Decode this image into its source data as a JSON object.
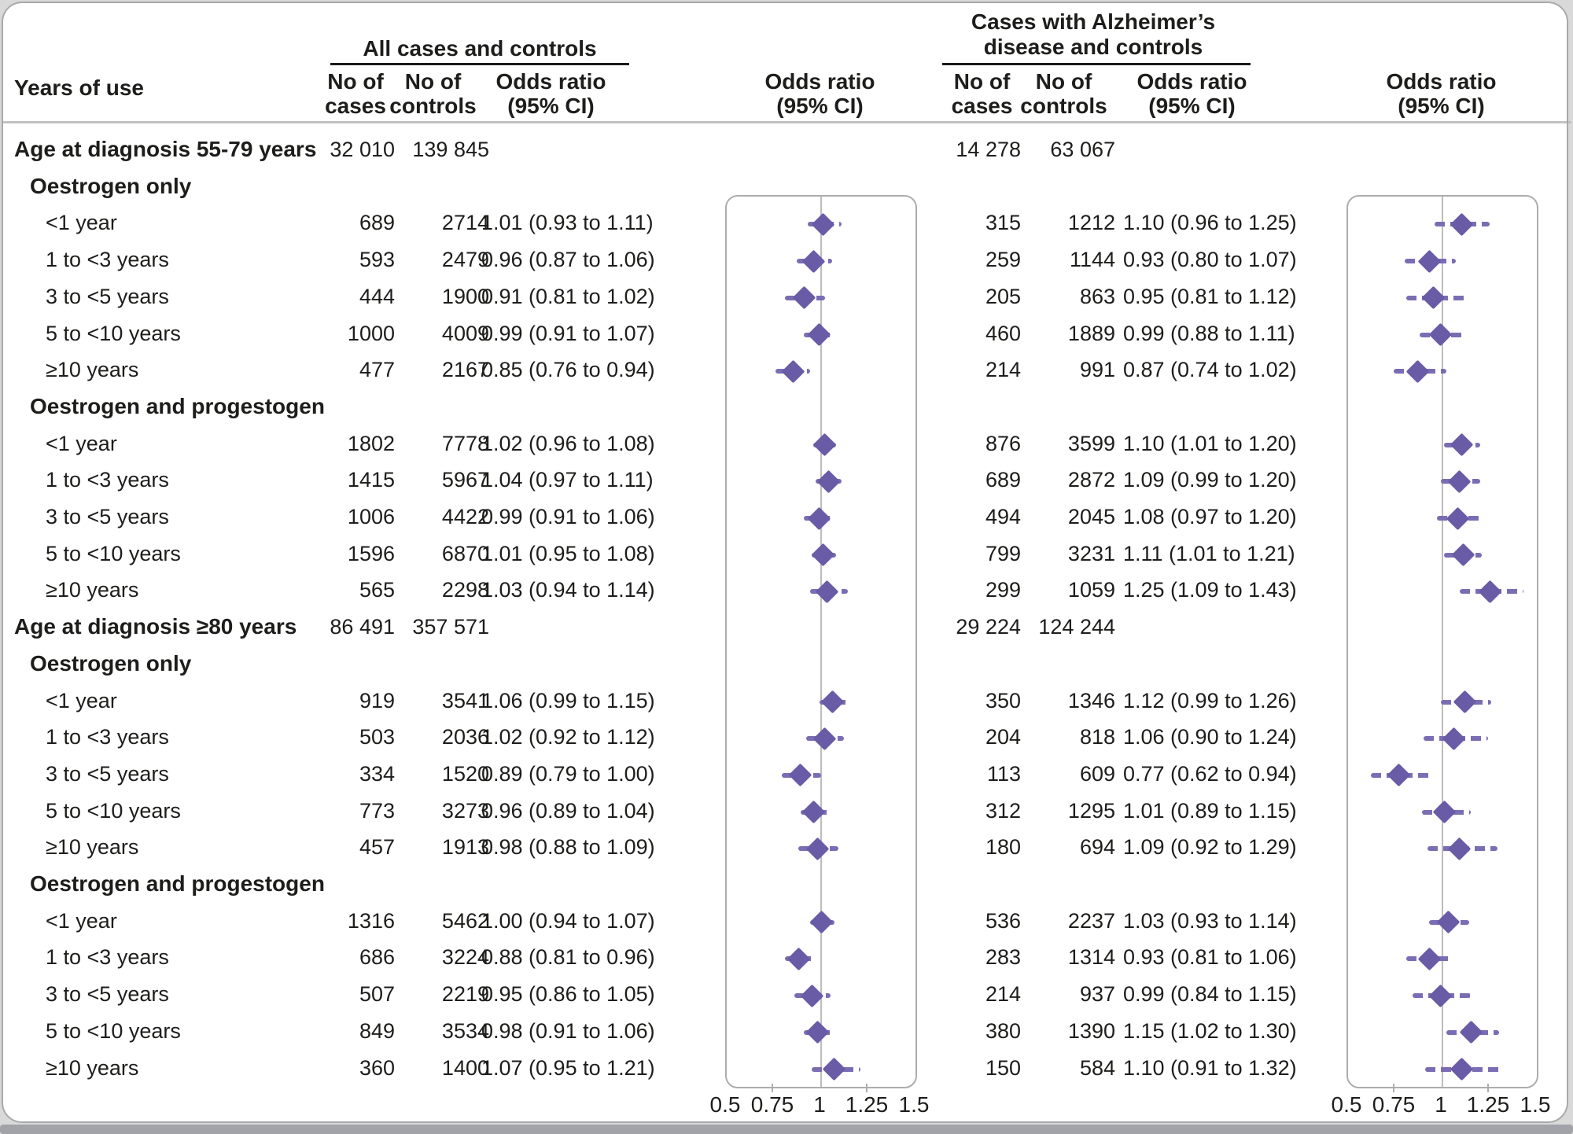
{
  "colors": {
    "diamond": "#6a5ba6",
    "ci_line": "#7b6db4",
    "plot_border": "#adadad",
    "refline": "#bcbcbc",
    "text": "#1d1d1b",
    "underline": "#1a1a1a",
    "separator": "#c2c2c2",
    "bottom_bar": "#a1a3a8",
    "panel_border": "#a8a8a8",
    "page_bg": "#d9d9d9"
  },
  "header": {
    "years_of_use": "Years of use",
    "all_cases_label": "All cases and controls",
    "alz_label_line1": "Cases with Alzheimer’s",
    "alz_label_line2": "disease and controls",
    "no_of": "No of",
    "cases": "cases",
    "controls": "controls",
    "odds_ratio": "Odds ratio",
    "ci": "(95% CI)"
  },
  "chart_data": {
    "type": "forest",
    "panels": [
      {
        "name": "All cases and controls"
      },
      {
        "name": "Cases with Alzheimer's disease and controls"
      }
    ],
    "x_axis": {
      "range": [
        0.5,
        1.5
      ],
      "ticks": [
        0.5,
        0.75,
        1,
        1.25,
        1.5
      ],
      "tick_labels": [
        "0.5",
        "0.75",
        "1",
        "1.25",
        "1.5"
      ],
      "refline": 1
    },
    "sections": [
      {
        "label": "Age at diagnosis 55-79 years",
        "totals": {
          "all": {
            "cases": "32 010",
            "controls": "139 845"
          },
          "alz": {
            "cases": "14 278",
            "controls": "63 067"
          }
        },
        "groups": [
          {
            "label": "Oestrogen only",
            "rows": [
              {
                "label": "<1 year",
                "all": {
                  "cases": "689",
                  "controls": "2714",
                  "text": "1.01 (0.93 to 1.11)",
                  "or": 1.01,
                  "lo": 0.93,
                  "hi": 1.11
                },
                "alz": {
                  "cases": "315",
                  "controls": "1212",
                  "text": "1.10 (0.96 to 1.25)",
                  "or": 1.1,
                  "lo": 0.96,
                  "hi": 1.25
                }
              },
              {
                "label": "1 to <3 years",
                "all": {
                  "cases": "593",
                  "controls": "2479",
                  "text": "0.96 (0.87 to 1.06)",
                  "or": 0.96,
                  "lo": 0.87,
                  "hi": 1.06
                },
                "alz": {
                  "cases": "259",
                  "controls": "1144",
                  "text": "0.93 (0.80 to 1.07)",
                  "or": 0.93,
                  "lo": 0.8,
                  "hi": 1.07
                }
              },
              {
                "label": "3 to <5 years",
                "all": {
                  "cases": "444",
                  "controls": "1900",
                  "text": "0.91 (0.81 to 1.02)",
                  "or": 0.91,
                  "lo": 0.81,
                  "hi": 1.02
                },
                "alz": {
                  "cases": "205",
                  "controls": "863",
                  "text": "0.95 (0.81 to 1.12)",
                  "or": 0.95,
                  "lo": 0.81,
                  "hi": 1.12
                }
              },
              {
                "label": "5 to <10 years",
                "all": {
                  "cases": "1000",
                  "controls": "4009",
                  "text": "0.99 (0.91 to 1.07)",
                  "or": 0.99,
                  "lo": 0.91,
                  "hi": 1.07
                },
                "alz": {
                  "cases": "460",
                  "controls": "1889",
                  "text": "0.99 (0.88 to 1.11)",
                  "or": 0.99,
                  "lo": 0.88,
                  "hi": 1.11
                }
              },
              {
                "label": "≥10 years",
                "all": {
                  "cases": "477",
                  "controls": "2167",
                  "text": "0.85 (0.76 to 0.94)",
                  "or": 0.85,
                  "lo": 0.76,
                  "hi": 0.94
                },
                "alz": {
                  "cases": "214",
                  "controls": "991",
                  "text": "0.87 (0.74 to 1.02)",
                  "or": 0.87,
                  "lo": 0.74,
                  "hi": 1.02
                }
              }
            ]
          },
          {
            "label": "Oestrogen and progestogen",
            "rows": [
              {
                "label": "<1 year",
                "all": {
                  "cases": "1802",
                  "controls": "7778",
                  "text": "1.02 (0.96 to 1.08)",
                  "or": 1.02,
                  "lo": 0.96,
                  "hi": 1.08
                },
                "alz": {
                  "cases": "876",
                  "controls": "3599",
                  "text": "1.10 (1.01 to 1.20)",
                  "or": 1.1,
                  "lo": 1.01,
                  "hi": 1.2
                }
              },
              {
                "label": "1 to <3 years",
                "all": {
                  "cases": "1415",
                  "controls": "5967",
                  "text": "1.04 (0.97 to 1.11)",
                  "or": 1.04,
                  "lo": 0.97,
                  "hi": 1.11
                },
                "alz": {
                  "cases": "689",
                  "controls": "2872",
                  "text": "1.09 (0.99 to 1.20)",
                  "or": 1.09,
                  "lo": 0.99,
                  "hi": 1.2
                }
              },
              {
                "label": "3 to <5 years",
                "all": {
                  "cases": "1006",
                  "controls": "4422",
                  "text": "0.99 (0.91 to 1.06)",
                  "or": 0.99,
                  "lo": 0.91,
                  "hi": 1.06
                },
                "alz": {
                  "cases": "494",
                  "controls": "2045",
                  "text": "1.08 (0.97 to 1.20)",
                  "or": 1.08,
                  "lo": 0.97,
                  "hi": 1.2
                }
              },
              {
                "label": "5 to <10 years",
                "all": {
                  "cases": "1596",
                  "controls": "6870",
                  "text": "1.01 (0.95 to 1.08)",
                  "or": 1.01,
                  "lo": 0.95,
                  "hi": 1.08
                },
                "alz": {
                  "cases": "799",
                  "controls": "3231",
                  "text": "1.11 (1.01 to 1.21)",
                  "or": 1.11,
                  "lo": 1.01,
                  "hi": 1.21
                }
              },
              {
                "label": "≥10 years",
                "all": {
                  "cases": "565",
                  "controls": "2298",
                  "text": "1.03 (0.94 to 1.14)",
                  "or": 1.03,
                  "lo": 0.94,
                  "hi": 1.14
                },
                "alz": {
                  "cases": "299",
                  "controls": "1059",
                  "text": "1.25 (1.09 to 1.43)",
                  "or": 1.25,
                  "lo": 1.09,
                  "hi": 1.43
                }
              }
            ]
          }
        ]
      },
      {
        "label": "Age at diagnosis ≥80 years",
        "totals": {
          "all": {
            "cases": "86 491",
            "controls": "357 571"
          },
          "alz": {
            "cases": "29 224",
            "controls": "124 244"
          }
        },
        "groups": [
          {
            "label": "Oestrogen only",
            "rows": [
              {
                "label": "<1 year",
                "all": {
                  "cases": "919",
                  "controls": "3541",
                  "text": "1.06 (0.99 to 1.15)",
                  "or": 1.06,
                  "lo": 0.99,
                  "hi": 1.15
                },
                "alz": {
                  "cases": "350",
                  "controls": "1346",
                  "text": "1.12 (0.99 to 1.26)",
                  "or": 1.12,
                  "lo": 0.99,
                  "hi": 1.26
                }
              },
              {
                "label": "1 to <3 years",
                "all": {
                  "cases": "503",
                  "controls": "2036",
                  "text": "1.02 (0.92 to 1.12)",
                  "or": 1.02,
                  "lo": 0.92,
                  "hi": 1.12
                },
                "alz": {
                  "cases": "204",
                  "controls": "818",
                  "text": "1.06 (0.90 to 1.24)",
                  "or": 1.06,
                  "lo": 0.9,
                  "hi": 1.24
                }
              },
              {
                "label": "3 to <5 years",
                "all": {
                  "cases": "334",
                  "controls": "1520",
                  "text": "0.89 (0.79 to 1.00)",
                  "or": 0.89,
                  "lo": 0.79,
                  "hi": 1.0
                },
                "alz": {
                  "cases": "113",
                  "controls": "609",
                  "text": "0.77 (0.62 to 0.94)",
                  "or": 0.77,
                  "lo": 0.62,
                  "hi": 0.94
                }
              },
              {
                "label": "5 to <10 years",
                "all": {
                  "cases": "773",
                  "controls": "3273",
                  "text": "0.96 (0.89 to 1.04)",
                  "or": 0.96,
                  "lo": 0.89,
                  "hi": 1.04
                },
                "alz": {
                  "cases": "312",
                  "controls": "1295",
                  "text": "1.01 (0.89 to 1.15)",
                  "or": 1.01,
                  "lo": 0.89,
                  "hi": 1.15
                }
              },
              {
                "label": "≥10 years",
                "all": {
                  "cases": "457",
                  "controls": "1913",
                  "text": "0.98 (0.88 to 1.09)",
                  "or": 0.98,
                  "lo": 0.88,
                  "hi": 1.09
                },
                "alz": {
                  "cases": "180",
                  "controls": "694",
                  "text": "1.09 (0.92 to 1.29)",
                  "or": 1.09,
                  "lo": 0.92,
                  "hi": 1.29
                }
              }
            ]
          },
          {
            "label": "Oestrogen and progestogen",
            "rows": [
              {
                "label": "<1 year",
                "all": {
                  "cases": "1316",
                  "controls": "5462",
                  "text": "1.00 (0.94 to 1.07)",
                  "or": 1.0,
                  "lo": 0.94,
                  "hi": 1.07
                },
                "alz": {
                  "cases": "536",
                  "controls": "2237",
                  "text": "1.03 (0.93 to 1.14)",
                  "or": 1.03,
                  "lo": 0.93,
                  "hi": 1.14
                }
              },
              {
                "label": "1 to <3 years",
                "all": {
                  "cases": "686",
                  "controls": "3224",
                  "text": "0.88 (0.81 to 0.96)",
                  "or": 0.88,
                  "lo": 0.81,
                  "hi": 0.96
                },
                "alz": {
                  "cases": "283",
                  "controls": "1314",
                  "text": "0.93 (0.81 to 1.06)",
                  "or": 0.93,
                  "lo": 0.81,
                  "hi": 1.06
                }
              },
              {
                "label": "3 to <5 years",
                "all": {
                  "cases": "507",
                  "controls": "2219",
                  "text": "0.95 (0.86 to 1.05)",
                  "or": 0.95,
                  "lo": 0.86,
                  "hi": 1.05
                },
                "alz": {
                  "cases": "214",
                  "controls": "937",
                  "text": "0.99 (0.84 to 1.15)",
                  "or": 0.99,
                  "lo": 0.84,
                  "hi": 1.15
                }
              },
              {
                "label": "5 to <10 years",
                "all": {
                  "cases": "849",
                  "controls": "3534",
                  "text": "0.98 (0.91 to 1.06)",
                  "or": 0.98,
                  "lo": 0.91,
                  "hi": 1.06
                },
                "alz": {
                  "cases": "380",
                  "controls": "1390",
                  "text": "1.15 (1.02 to 1.30)",
                  "or": 1.15,
                  "lo": 1.02,
                  "hi": 1.3
                }
              },
              {
                "label": "≥10 years",
                "all": {
                  "cases": "360",
                  "controls": "1400",
                  "text": "1.07 (0.95 to 1.21)",
                  "or": 1.07,
                  "lo": 0.95,
                  "hi": 1.21
                },
                "alz": {
                  "cases": "150",
                  "controls": "584",
                  "text": "1.10 (0.91 to 1.32)",
                  "or": 1.1,
                  "lo": 0.91,
                  "hi": 1.32
                }
              }
            ]
          }
        ]
      }
    ]
  }
}
